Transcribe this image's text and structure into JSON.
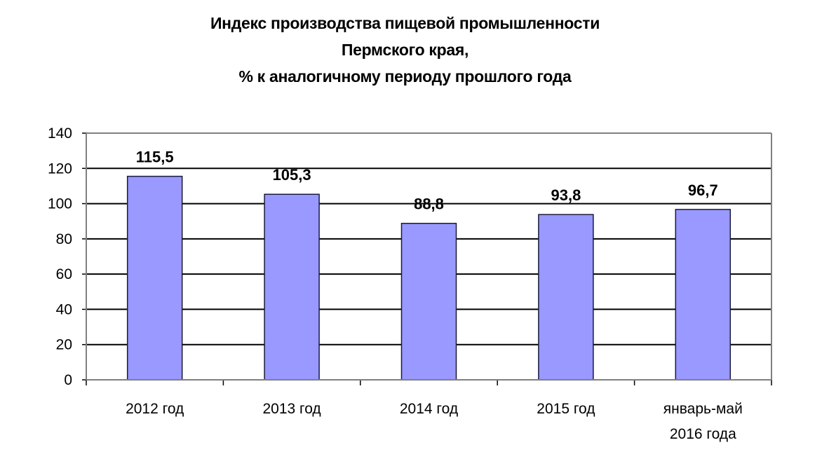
{
  "chart_data": {
    "type": "bar",
    "title": "Индекс производства пищевой промышленности Пермского края, % к аналогичному периоду прошлого года",
    "title_lines": [
      "Индекс производства пищевой промышленности",
      "Пермского края,",
      "% к аналогичному периоду прошлого года"
    ],
    "categories": [
      "2012 год",
      "2013 год",
      "2014 год",
      "2015 год",
      "январь-май\n2016 года"
    ],
    "category_lines": [
      [
        "2012 год"
      ],
      [
        "2013 год"
      ],
      [
        "2014 год"
      ],
      [
        "2015 год"
      ],
      [
        "январь-май",
        "2016 года"
      ]
    ],
    "values": [
      115.5,
      105.3,
      88.8,
      93.8,
      96.7
    ],
    "value_labels": [
      "115,5",
      "105,3",
      "88,8",
      "93,8",
      "96,7"
    ],
    "xlabel": "",
    "ylabel": "",
    "ylim": [
      0,
      140
    ],
    "yticks": [
      0,
      20,
      40,
      60,
      80,
      100,
      120,
      140
    ],
    "grid": true,
    "legend": null,
    "colors": {
      "bar_fill": "#9999ff",
      "bar_stroke": "#1a1a3a",
      "grid": "#000000"
    }
  }
}
